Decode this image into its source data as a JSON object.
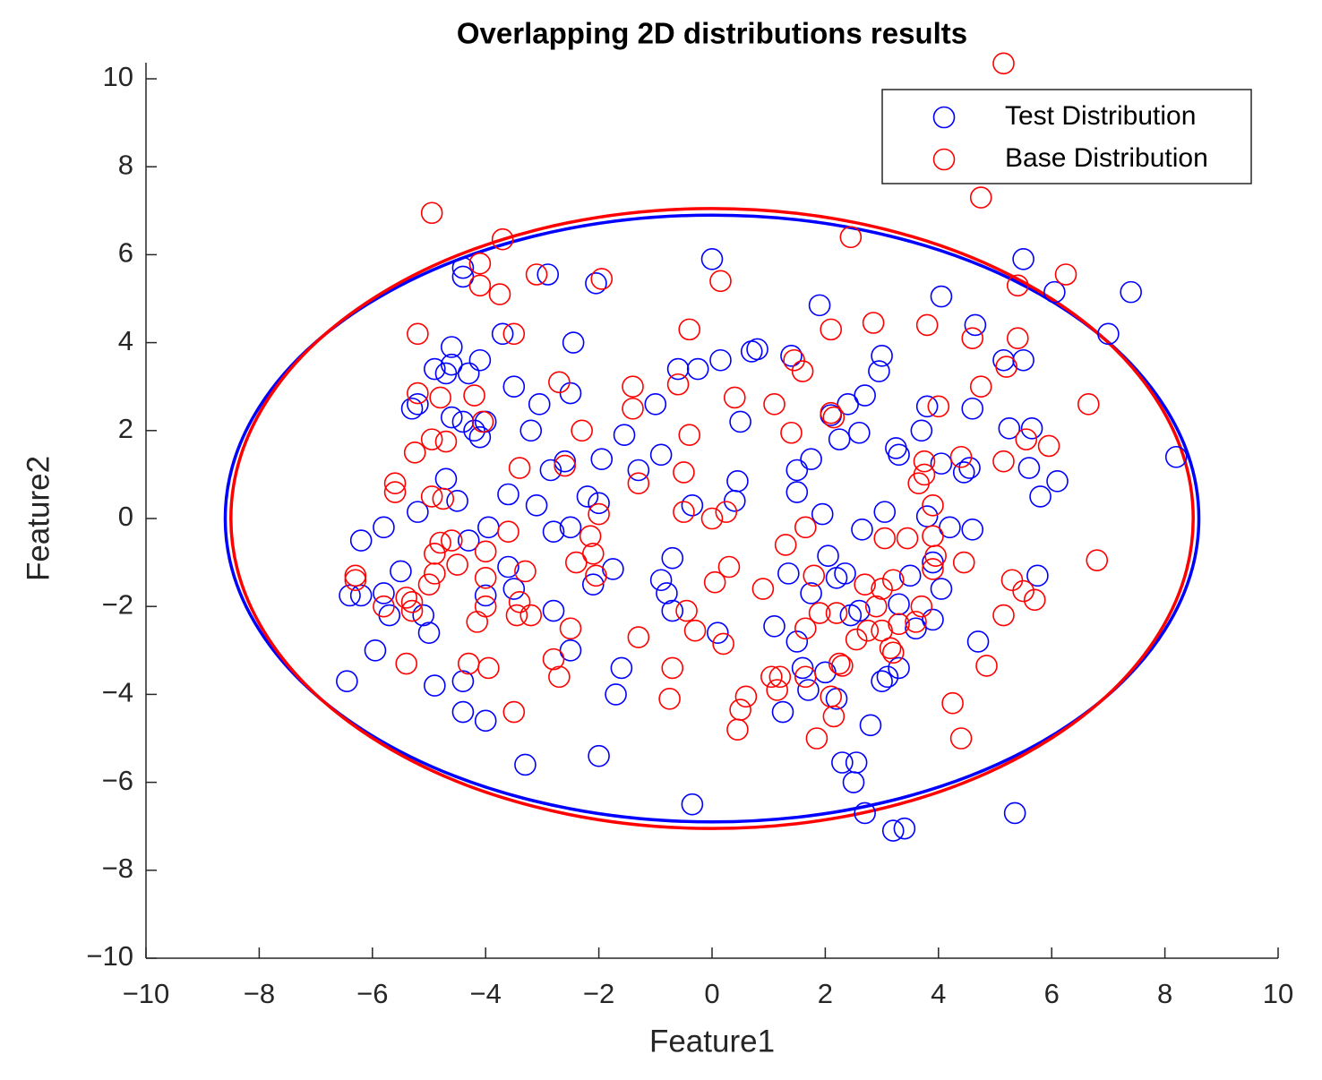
{
  "chart_data": {
    "type": "scatter",
    "title": "Overlapping 2D distributions results",
    "xlabel": "Feature1",
    "ylabel": "Feature2",
    "xlim": [
      -10,
      10
    ],
    "ylim": [
      -10,
      10
    ],
    "xticks": [
      {
        "value": -10,
        "label": "−10"
      },
      {
        "value": -8,
        "label": "−8"
      },
      {
        "value": -6,
        "label": "−6"
      },
      {
        "value": -4,
        "label": "−4"
      },
      {
        "value": -2,
        "label": "−2"
      },
      0,
      2,
      4,
      6,
      8,
      10
    ],
    "yticks": [
      {
        "value": -10,
        "label": "−10"
      },
      {
        "value": -8,
        "label": "−8"
      },
      {
        "value": -6,
        "label": "−6"
      },
      {
        "value": -4,
        "label": "−4"
      },
      {
        "value": -2,
        "label": "−2"
      },
      0,
      2,
      4,
      6,
      8,
      10
    ],
    "legend": "northeast",
    "series": [
      {
        "name": "Test Distribution",
        "color": "#0000ff",
        "x": [
          -6.4,
          -6.45,
          -6.2,
          -6.2,
          -5.8,
          -5.8,
          -5.95,
          -5.7,
          -5.5,
          -5.3,
          -5.2,
          -5.2,
          -5.1,
          -5.0,
          -4.9,
          -4.9,
          -4.7,
          -4.7,
          -4.6,
          -4.6,
          -4.6,
          -4.5,
          -4.4,
          -4.4,
          -4.4,
          -4.4,
          -4.4,
          -4.3,
          -4.3,
          -4.2,
          -4.1,
          -4.1,
          -4.0,
          -3.95,
          -4.0,
          -4.0,
          -3.7,
          -3.6,
          -3.6,
          -3.5,
          -3.5,
          -3.3,
          -3.2,
          -3.1,
          -3.05,
          -2.9,
          -2.85,
          -2.8,
          -2.8,
          -2.6,
          -2.5,
          -2.5,
          -2.45,
          -2.5,
          -2.2,
          -2.1,
          -2.05,
          -2.0,
          -2.0,
          -1.95,
          -1.75,
          -1.7,
          -1.6,
          -1.55,
          -1.3,
          -1.0,
          -0.9,
          -0.9,
          -0.8,
          -0.7,
          -0.7,
          -0.6,
          -0.35,
          -0.35,
          -0.25,
          0.0,
          0.1,
          0.15,
          0.4,
          0.45,
          0.5,
          0.7,
          0.8,
          1.1,
          1.25,
          1.35,
          1.4,
          1.5,
          1.5,
          1.5,
          1.6,
          1.7,
          1.75,
          1.75,
          1.9,
          1.95,
          2.0,
          2.05,
          2.1,
          2.2,
          2.2,
          2.25,
          2.3,
          2.35,
          2.4,
          2.45,
          2.5,
          2.55,
          2.6,
          2.6,
          2.65,
          2.7,
          2.7,
          2.8,
          2.95,
          3.0,
          3.0,
          3.05,
          3.1,
          3.2,
          3.25,
          3.3,
          3.3,
          3.3,
          3.4,
          3.5,
          3.6,
          3.7,
          3.8,
          3.8,
          3.9,
          3.9,
          4.05,
          4.05,
          4.05,
          4.2,
          4.45,
          4.55,
          4.6,
          4.6,
          4.65,
          4.7,
          5.15,
          5.25,
          5.35,
          5.5,
          5.5,
          5.6,
          5.65,
          5.75,
          5.8,
          6.05,
          6.1,
          7.0,
          7.4,
          8.2
        ],
        "values": [
          -1.75,
          -3.7,
          -0.5,
          -1.75,
          -0.2,
          -1.7,
          -3.0,
          -2.2,
          -1.2,
          2.5,
          2.6,
          0.15,
          -2.2,
          -2.6,
          3.4,
          -3.8,
          3.3,
          0.9,
          3.9,
          3.5,
          2.3,
          0.4,
          5.7,
          5.5,
          2.2,
          -3.7,
          -4.4,
          3.3,
          -0.5,
          2.0,
          3.6,
          1.85,
          2.2,
          -0.2,
          -1.75,
          -4.6,
          4.2,
          0.55,
          -1.1,
          3.0,
          -1.6,
          -5.6,
          2.0,
          0.3,
          2.6,
          5.55,
          1.1,
          -0.3,
          -2.1,
          1.3,
          2.85,
          -3.0,
          4.0,
          -0.2,
          0.5,
          -1.5,
          5.35,
          0.35,
          -5.4,
          1.35,
          -1.15,
          -4.0,
          -3.4,
          1.9,
          1.1,
          2.6,
          1.45,
          -1.4,
          -1.7,
          -2.1,
          -0.9,
          3.4,
          -6.5,
          0.3,
          3.4,
          5.9,
          -2.6,
          3.6,
          0.4,
          0.85,
          2.2,
          3.8,
          3.85,
          -2.45,
          -4.4,
          -1.25,
          3.7,
          1.1,
          0.6,
          -2.8,
          -3.4,
          -3.9,
          1.35,
          -1.7,
          4.85,
          0.1,
          -3.5,
          -0.85,
          2.35,
          -1.35,
          -4.1,
          1.8,
          -5.55,
          -1.25,
          2.6,
          -2.2,
          -6.0,
          -5.55,
          1.95,
          -2.1,
          -0.25,
          2.8,
          -6.7,
          -4.7,
          3.35,
          3.7,
          -3.7,
          0.15,
          -3.6,
          -7.1,
          1.6,
          1.45,
          -1.95,
          -3.4,
          -7.05,
          -1.3,
          -2.5,
          2.0,
          2.55,
          0.05,
          -1.0,
          -2.3,
          5.05,
          1.25,
          -1.6,
          -0.2,
          1.05,
          1.15,
          2.5,
          -0.25,
          4.4,
          -2.8,
          3.6,
          2.05,
          -6.7,
          5.9,
          3.6,
          1.15,
          2.05,
          -1.3,
          0.5,
          5.15,
          0.85,
          4.2,
          5.15,
          1.4
        ]
      },
      {
        "name": "Base Distribution",
        "color": "#ff0000",
        "x": [
          -6.3,
          -6.3,
          -5.8,
          -5.6,
          -5.6,
          -5.4,
          -5.4,
          -5.3,
          -5.3,
          -5.2,
          -5.2,
          -5.25,
          -5.0,
          -4.95,
          -4.95,
          -4.9,
          -4.9,
          -4.95,
          -4.8,
          -4.8,
          -4.75,
          -4.7,
          -4.6,
          -4.5,
          -4.3,
          -4.2,
          -4.15,
          -4.1,
          -4.1,
          -4.05,
          -4.0,
          -4.0,
          -4.0,
          -3.95,
          -3.7,
          -3.75,
          -3.6,
          -3.5,
          -3.5,
          -3.45,
          -3.4,
          -3.4,
          -3.3,
          -3.2,
          -3.1,
          -2.8,
          -2.7,
          -2.7,
          -2.6,
          -2.5,
          -2.4,
          -2.3,
          -2.15,
          -2.1,
          -2.05,
          -1.95,
          -2.0,
          -1.4,
          -1.4,
          -1.3,
          -1.3,
          -0.75,
          -0.7,
          -0.6,
          -0.5,
          -0.5,
          -0.45,
          -0.4,
          -0.4,
          -0.3,
          0.0,
          0.05,
          0.15,
          0.2,
          0.25,
          0.3,
          0.4,
          0.45,
          0.5,
          0.6,
          0.9,
          1.05,
          1.1,
          1.15,
          1.2,
          1.3,
          1.4,
          1.45,
          1.6,
          1.65,
          1.65,
          1.65,
          1.8,
          1.85,
          1.9,
          2.1,
          2.1,
          2.15,
          2.1,
          2.15,
          2.2,
          2.25,
          2.3,
          2.45,
          2.55,
          2.7,
          2.75,
          2.85,
          2.9,
          3.0,
          3.0,
          3.05,
          3.15,
          3.2,
          3.2,
          3.3,
          3.45,
          3.6,
          3.65,
          3.7,
          3.75,
          3.75,
          3.8,
          3.9,
          3.9,
          3.9,
          3.95,
          4.0,
          4.25,
          4.4,
          4.4,
          4.45,
          4.6,
          4.75,
          4.75,
          4.85,
          5.15,
          5.15,
          5.15,
          5.2,
          5.3,
          5.4,
          5.4,
          5.5,
          5.55,
          5.7,
          5.95,
          6.25,
          6.65,
          6.8
        ],
        "values": [
          -1.3,
          -1.4,
          -2.0,
          0.8,
          0.6,
          -1.8,
          -3.3,
          -1.9,
          -2.1,
          4.2,
          2.85,
          1.5,
          -1.5,
          1.8,
          0.5,
          -0.8,
          -1.25,
          6.95,
          2.75,
          -0.55,
          0.45,
          1.75,
          -0.5,
          -1.05,
          -3.3,
          2.8,
          -2.35,
          5.8,
          5.3,
          2.2,
          -0.75,
          -1.35,
          -2.0,
          -3.4,
          6.35,
          5.1,
          -0.3,
          4.2,
          -4.4,
          -2.2,
          -1.9,
          1.15,
          -1.2,
          -2.2,
          5.55,
          -3.2,
          3.1,
          -3.6,
          1.2,
          -2.5,
          -1.0,
          2.0,
          -0.4,
          -0.8,
          -1.3,
          5.45,
          0.1,
          3.0,
          2.5,
          0.8,
          -2.7,
          -4.1,
          -3.4,
          3.05,
          1.05,
          0.15,
          -2.1,
          4.3,
          1.9,
          -2.55,
          0.0,
          -1.45,
          5.4,
          -2.85,
          0.15,
          -1.1,
          2.75,
          -4.8,
          -4.35,
          -4.05,
          -1.6,
          -3.6,
          2.6,
          -3.9,
          -3.6,
          -0.6,
          1.95,
          3.6,
          3.35,
          -0.2,
          -2.5,
          -3.6,
          -1.3,
          -5.0,
          -2.15,
          4.3,
          2.4,
          2.3,
          -4.05,
          -4.5,
          -2.15,
          -3.3,
          -3.35,
          6.4,
          -2.75,
          -1.5,
          -2.55,
          4.45,
          -2.0,
          -1.6,
          -2.55,
          -0.45,
          -2.95,
          -3.05,
          -1.4,
          -2.4,
          -0.45,
          -2.35,
          0.8,
          -2.0,
          1.3,
          1.0,
          4.4,
          0.3,
          -0.4,
          -1.15,
          -0.85,
          2.55,
          -4.2,
          1.4,
          -5.0,
          -1.0,
          4.1,
          3.0,
          7.3,
          -3.35,
          10.35,
          -2.2,
          1.3,
          3.45,
          -1.4,
          4.1,
          5.3,
          -1.65,
          1.8,
          -1.85,
          1.65,
          5.55,
          2.6,
          -0.95
        ]
      }
    ],
    "ellipses": [
      {
        "color": "#0000ff",
        "cx": 0,
        "cy": 0,
        "rx": 8.6,
        "ry": 6.9
      },
      {
        "color": "#ff0000",
        "cx": 0,
        "cy": 0,
        "rx": 8.5,
        "ry": 7.05
      }
    ]
  }
}
